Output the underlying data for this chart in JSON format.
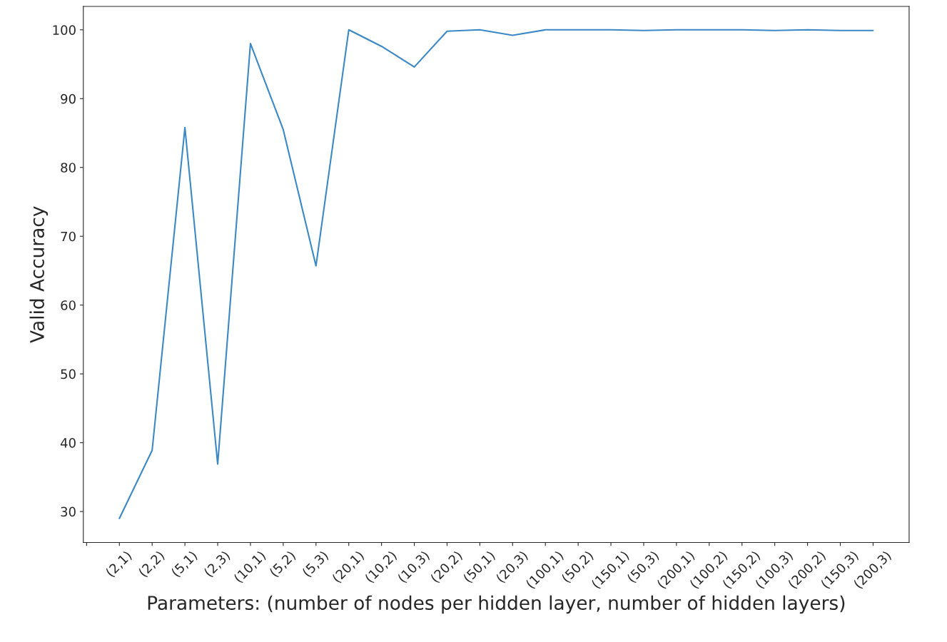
{
  "chart_data": {
    "type": "line",
    "xlabel": "Parameters: (number of nodes per hidden layer, number of hidden layers)",
    "ylabel": "Valid Accuracy",
    "categories": [
      null,
      "(2,1)",
      "(2,2)",
      "(5,1)",
      "(2,3)",
      "(10,1)",
      "(5,2)",
      "(5,3)",
      "(20,1)",
      "(10,2)",
      "(10,3)",
      "(20,2)",
      "(50,1)",
      "(20,3)",
      "(100,1)",
      "(50,2)",
      "(150,1)",
      "(50,3)",
      "(200,1)",
      "(100,2)",
      "(150,2)",
      "(100,3)",
      "(200,2)",
      "(150,3)",
      "(200,3)"
    ],
    "series": [
      {
        "color": "#3a88c5",
        "values": [
          null,
          29.0,
          38.9,
          85.8,
          36.9,
          98.0,
          85.5,
          65.7,
          100.0,
          97.6,
          94.6,
          99.8,
          100.0,
          99.2,
          100.0,
          100.0,
          100.0,
          99.9,
          100.0,
          100.0,
          100.0,
          99.9,
          100.0,
          99.9,
          99.9
        ]
      }
    ],
    "ylim": [
      25.5,
      103.4
    ],
    "yticks": [
      30,
      40,
      50,
      60,
      70,
      80,
      90,
      100
    ],
    "grid": false,
    "legend": false
  }
}
